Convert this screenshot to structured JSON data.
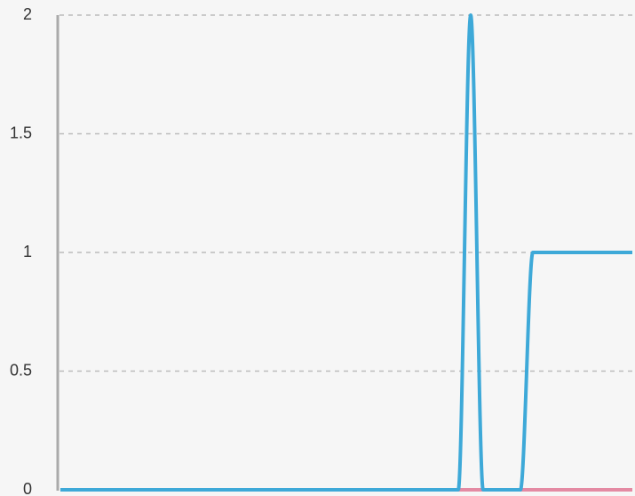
{
  "chart_data": {
    "type": "line",
    "categories": [
      null,
      null,
      null,
      null,
      null,
      null,
      null,
      null,
      null,
      null,
      null,
      null,
      null,
      null,
      null,
      null,
      null,
      null,
      null,
      null,
      null,
      null,
      null,
      null,
      null,
      null,
      null,
      null,
      null,
      null,
      null,
      null,
      null,
      null,
      null,
      null,
      null,
      null,
      null,
      null,
      null,
      null,
      null,
      null,
      null,
      null,
      null
    ],
    "series": [
      {
        "color": "#e48aa3",
        "values": [
          0,
          0,
          0,
          0,
          0,
          0,
          0,
          0,
          0,
          0,
          0,
          0,
          0,
          0,
          0,
          0,
          0,
          0,
          0,
          0,
          0,
          0,
          0,
          0,
          0,
          0,
          0,
          0,
          0,
          0,
          0,
          0,
          0,
          0,
          0,
          0,
          0,
          0,
          0,
          0,
          0,
          0,
          0,
          0,
          0,
          0,
          0
        ]
      },
      {
        "color": "#3ea9d8",
        "values": [
          0,
          0,
          0,
          0,
          0,
          0,
          0,
          0,
          0,
          0,
          0,
          0,
          0,
          0,
          0,
          0,
          0,
          0,
          0,
          0,
          0,
          0,
          0,
          0,
          0,
          0,
          0,
          0,
          0,
          0,
          0,
          0,
          0,
          2,
          0,
          0,
          0,
          0,
          1,
          1,
          1,
          1,
          1,
          1,
          1,
          1,
          1
        ]
      }
    ],
    "ylim": [
      0,
      2
    ],
    "yticks": [
      0,
      0.5,
      1,
      1.5,
      2
    ],
    "grid": true
  }
}
